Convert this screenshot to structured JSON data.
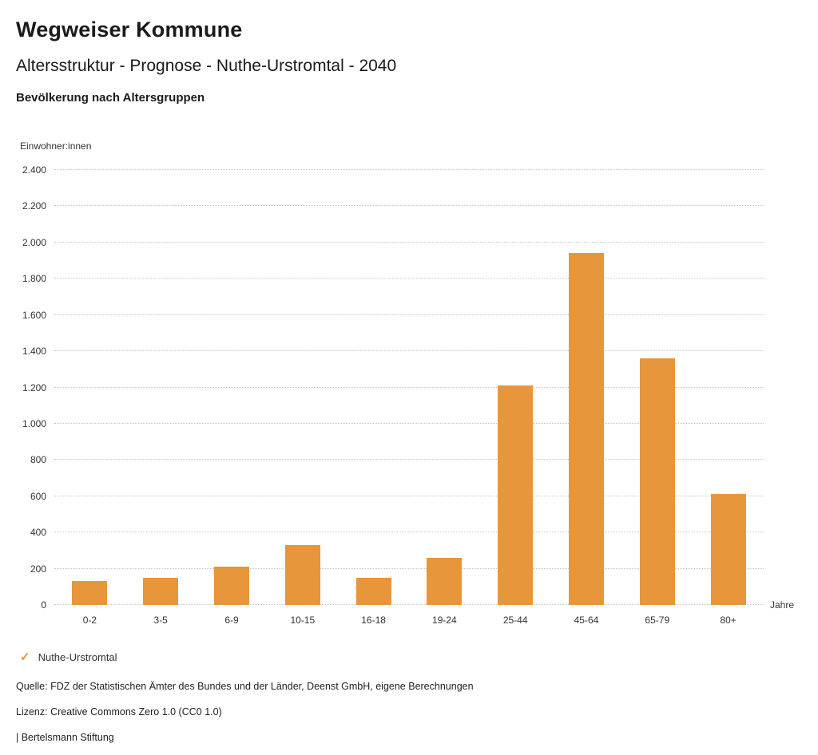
{
  "header": {
    "title": "Wegweiser Kommune",
    "subtitle": "Altersstruktur - Prognose - Nuthe-Urstromtal - 2040",
    "heading": "Bevölkerung nach Altersgruppen"
  },
  "chart_data": {
    "type": "bar",
    "title": "Bevölkerung nach Altersgruppen",
    "y_unit_label": "Einwohner:innen",
    "x_unit_label": "Jahre",
    "categories": [
      "0-2",
      "3-5",
      "6-9",
      "10-15",
      "16-18",
      "19-24",
      "25-44",
      "45-64",
      "65-79",
      "80+"
    ],
    "values": [
      130,
      150,
      210,
      330,
      150,
      260,
      1210,
      1940,
      1360,
      610
    ],
    "series_name": "Nuthe-Urstromtal",
    "ylim": [
      0,
      2400
    ],
    "yticks": [
      {
        "value": 0,
        "label": "0"
      },
      {
        "value": 200,
        "label": "200"
      },
      {
        "value": 400,
        "label": "400"
      },
      {
        "value": 600,
        "label": "600"
      },
      {
        "value": 800,
        "label": "800"
      },
      {
        "value": 1000,
        "label": "1.000"
      },
      {
        "value": 1200,
        "label": "1.200"
      },
      {
        "value": 1400,
        "label": "1.400"
      },
      {
        "value": 1600,
        "label": "1.600"
      },
      {
        "value": 1800,
        "label": "1.800"
      },
      {
        "value": 2000,
        "label": "2.000"
      },
      {
        "value": 2200,
        "label": "2.200"
      },
      {
        "value": 2400,
        "label": "2.400"
      }
    ],
    "bar_color": "#E8963C",
    "grid": "dotted-horizontal",
    "legend_position": "bottom-left"
  },
  "legend": {
    "check_icon": "✓",
    "series_label": "Nuthe-Urstromtal"
  },
  "footer": {
    "source": "Quelle: FDZ der Statistischen Ämter des Bundes und der Länder, Deenst GmbH, eigene Berechnungen",
    "license": "Lizenz: Creative Commons Zero 1.0 (CC0 1.0)",
    "attribution": "| Bertelsmann Stiftung"
  }
}
